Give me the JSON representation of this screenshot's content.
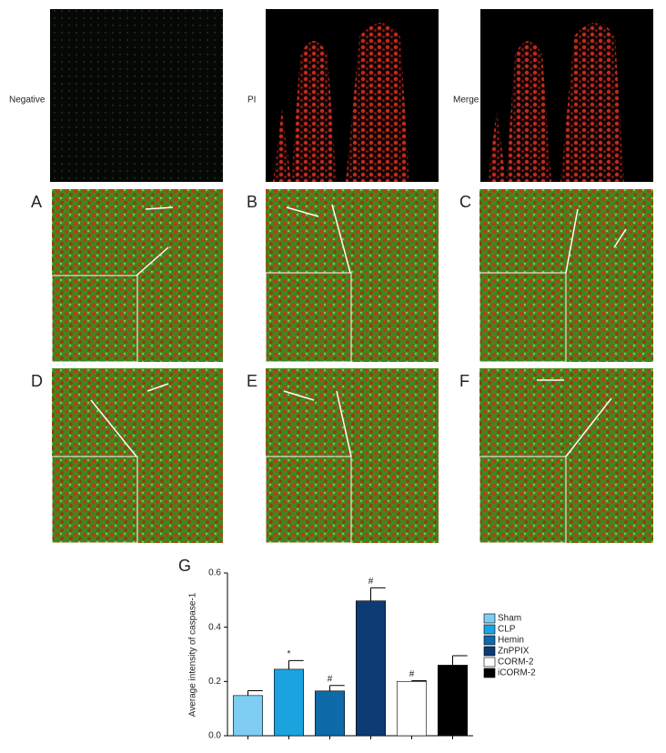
{
  "figure": {
    "row_labels": [
      "Negative",
      "PI",
      "Merge"
    ],
    "panel_labels": [
      "A",
      "B",
      "C",
      "D",
      "E",
      "F",
      "G"
    ]
  },
  "chart_data": {
    "type": "bar",
    "ylabel": "Average intensity of caspase-1",
    "categories": [
      "Sham",
      "CLP",
      "Hemin",
      "ZnPPIX",
      "CORM-2",
      "iCORM-2"
    ],
    "values": [
      0.148,
      0.245,
      0.165,
      0.497,
      0.2,
      0.26
    ],
    "errors": [
      0.018,
      0.032,
      0.02,
      0.048,
      0.003,
      0.035
    ],
    "annotations": [
      null,
      "*",
      "#",
      "#",
      "#",
      null
    ],
    "colors": [
      "#7fcdf2",
      "#1ba3e0",
      "#0e6aa8",
      "#0d3b73",
      "#ffffff",
      "#000000"
    ],
    "ylim": [
      0,
      0.6
    ],
    "yticks": [
      {
        "value": 0,
        "label": "0.0"
      },
      0.2,
      0.4,
      0.6
    ]
  }
}
